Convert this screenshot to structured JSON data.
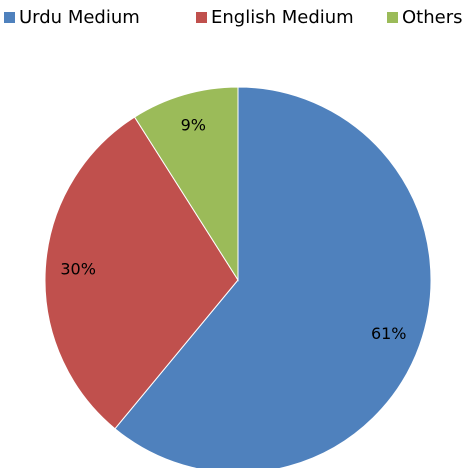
{
  "chart_data": {
    "type": "pie",
    "categories": [
      "Urdu Medium",
      "English Medium",
      "Others"
    ],
    "values": [
      61,
      30,
      9
    ],
    "value_labels": [
      "61%",
      "30%",
      "9%"
    ],
    "colors": [
      "#4f81bd",
      "#c0504d",
      "#9bbb59"
    ],
    "legend": "top"
  }
}
